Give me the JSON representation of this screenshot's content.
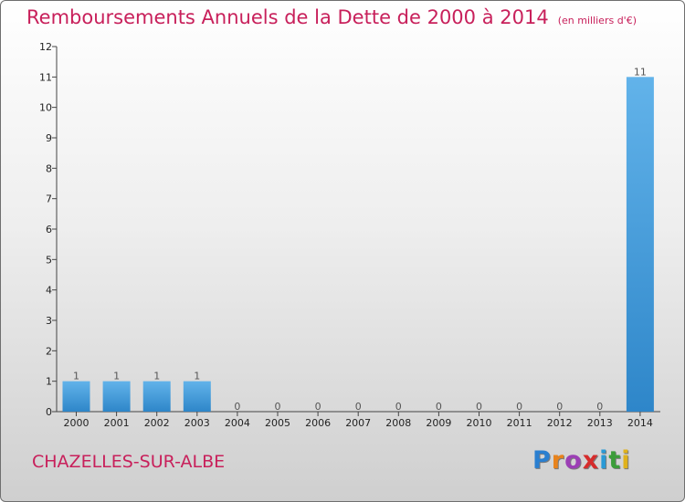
{
  "chart_data": {
    "type": "bar",
    "title": "Remboursements Annuels de la Dette de 2000 à 2014",
    "subtitle": "(en milliers d'€)",
    "categories": [
      "2000",
      "2001",
      "2002",
      "2003",
      "2004",
      "2005",
      "2006",
      "2007",
      "2008",
      "2009",
      "2010",
      "2011",
      "2012",
      "2013",
      "2014"
    ],
    "values": [
      1,
      1,
      1,
      1,
      0,
      0,
      0,
      0,
      0,
      0,
      0,
      0,
      0,
      0,
      11
    ],
    "data_labels": [
      "1",
      "1",
      "1",
      "1",
      "0",
      "0",
      "0",
      "0",
      "0",
      "0",
      "0",
      "0",
      "0",
      "0",
      "11"
    ],
    "ylim": [
      0,
      12
    ],
    "yticks": [
      0,
      1,
      2,
      3,
      4,
      5,
      6,
      7,
      8,
      9,
      10,
      11,
      12
    ],
    "xlabel": "",
    "ylabel": "",
    "bar_color": "#2e86c9",
    "bar_color_light": "#62b3ea"
  },
  "footer": {
    "commune": "CHAZELLES-SUR-ALBE",
    "logo_letters": [
      "P",
      "r",
      "o",
      "x",
      "i",
      "t",
      "i"
    ],
    "logo_colors": [
      "#2a7fd0",
      "#e8831c",
      "#9c3fb5",
      "#d62c2c",
      "#2a9ad6",
      "#3c9d3a",
      "#e0b21c"
    ]
  }
}
